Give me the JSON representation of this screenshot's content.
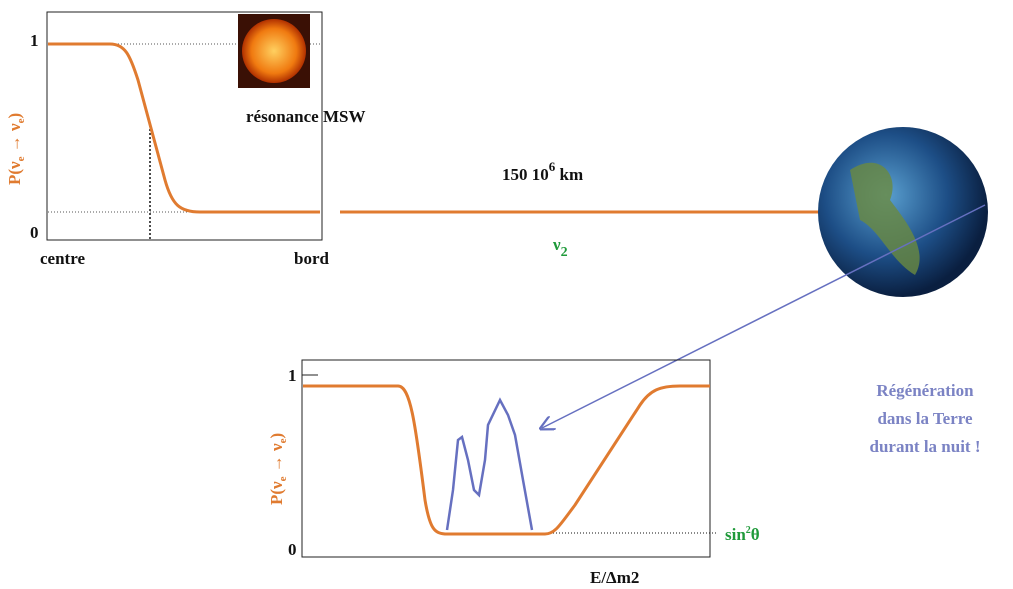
{
  "top_plot": {
    "y_label": [
      "P(ν",
      "e",
      " → ν",
      "e",
      ")"
    ],
    "y_tick_top": "1",
    "y_tick_bottom": "0",
    "x_left": "centre",
    "x_right": "bord",
    "annotation": "résonance MSW"
  },
  "distance": [
    "150 10",
    "6",
    " km"
  ],
  "neutrino": [
    "ν",
    "2"
  ],
  "bottom_plot": {
    "y_label": [
      "P(ν",
      "e",
      " → ν",
      "e",
      ")"
    ],
    "y_tick_top": "1",
    "y_tick_bottom": "0",
    "x_label": "E/Δm2",
    "level": [
      "sin",
      "2",
      "θ"
    ]
  },
  "note": [
    "Régénération",
    "dans la Terre",
    "durant la nuit !"
  ]
}
